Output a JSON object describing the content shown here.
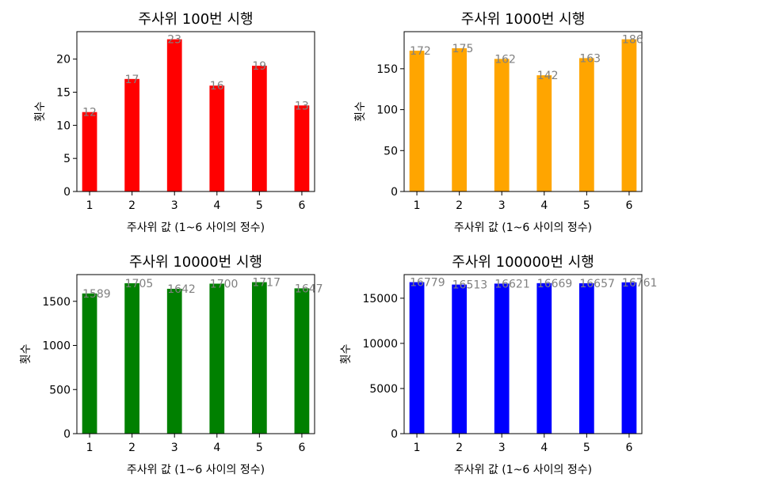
{
  "chart_data": [
    {
      "type": "bar",
      "title": "주사위 100번 시행",
      "xlabel": "주사위 값 (1~6 사이의 정수)",
      "ylabel": "횟수",
      "color": "#ff0000",
      "categories": [
        1,
        2,
        3,
        4,
        5,
        6
      ],
      "values": [
        12,
        17,
        23,
        16,
        19,
        13
      ],
      "xlim": [
        0.7,
        6.3
      ],
      "ylim": [
        0,
        24.15
      ],
      "yticks": [
        0,
        5,
        10,
        15,
        20
      ],
      "grid": false
    },
    {
      "type": "bar",
      "title": "주사위 1000번 시행",
      "xlabel": "주사위 값 (1~6 사이의 정수)",
      "ylabel": "횟수",
      "color": "#ffa500",
      "categories": [
        1,
        2,
        3,
        4,
        5,
        6
      ],
      "values": [
        172,
        175,
        162,
        142,
        163,
        186
      ],
      "xlim": [
        0.7,
        6.3
      ],
      "ylim": [
        0,
        195.3
      ],
      "yticks": [
        0,
        50,
        100,
        150
      ],
      "grid": false
    },
    {
      "type": "bar",
      "title": "주사위 10000번 시행",
      "xlabel": "주사위 값 (1~6 사이의 정수)",
      "ylabel": "횟수",
      "color": "#008000",
      "categories": [
        1,
        2,
        3,
        4,
        5,
        6
      ],
      "values": [
        1589,
        1705,
        1642,
        1700,
        1717,
        1647
      ],
      "xlim": [
        0.7,
        6.3
      ],
      "ylim": [
        0,
        1802.85
      ],
      "yticks": [
        0,
        500,
        1000,
        1500
      ],
      "grid": false
    },
    {
      "type": "bar",
      "title": "주사위 100000번 시행",
      "xlabel": "주사위 값 (1~6 사이의 정수)",
      "ylabel": "횟수",
      "color": "#0000ff",
      "categories": [
        1,
        2,
        3,
        4,
        5,
        6
      ],
      "values": [
        16779,
        16513,
        16621,
        16669,
        16657,
        16761
      ],
      "xlim": [
        0.7,
        6.3
      ],
      "ylim": [
        0,
        17617.95
      ],
      "yticks": [
        0,
        5000,
        10000,
        15000
      ],
      "grid": false
    }
  ]
}
